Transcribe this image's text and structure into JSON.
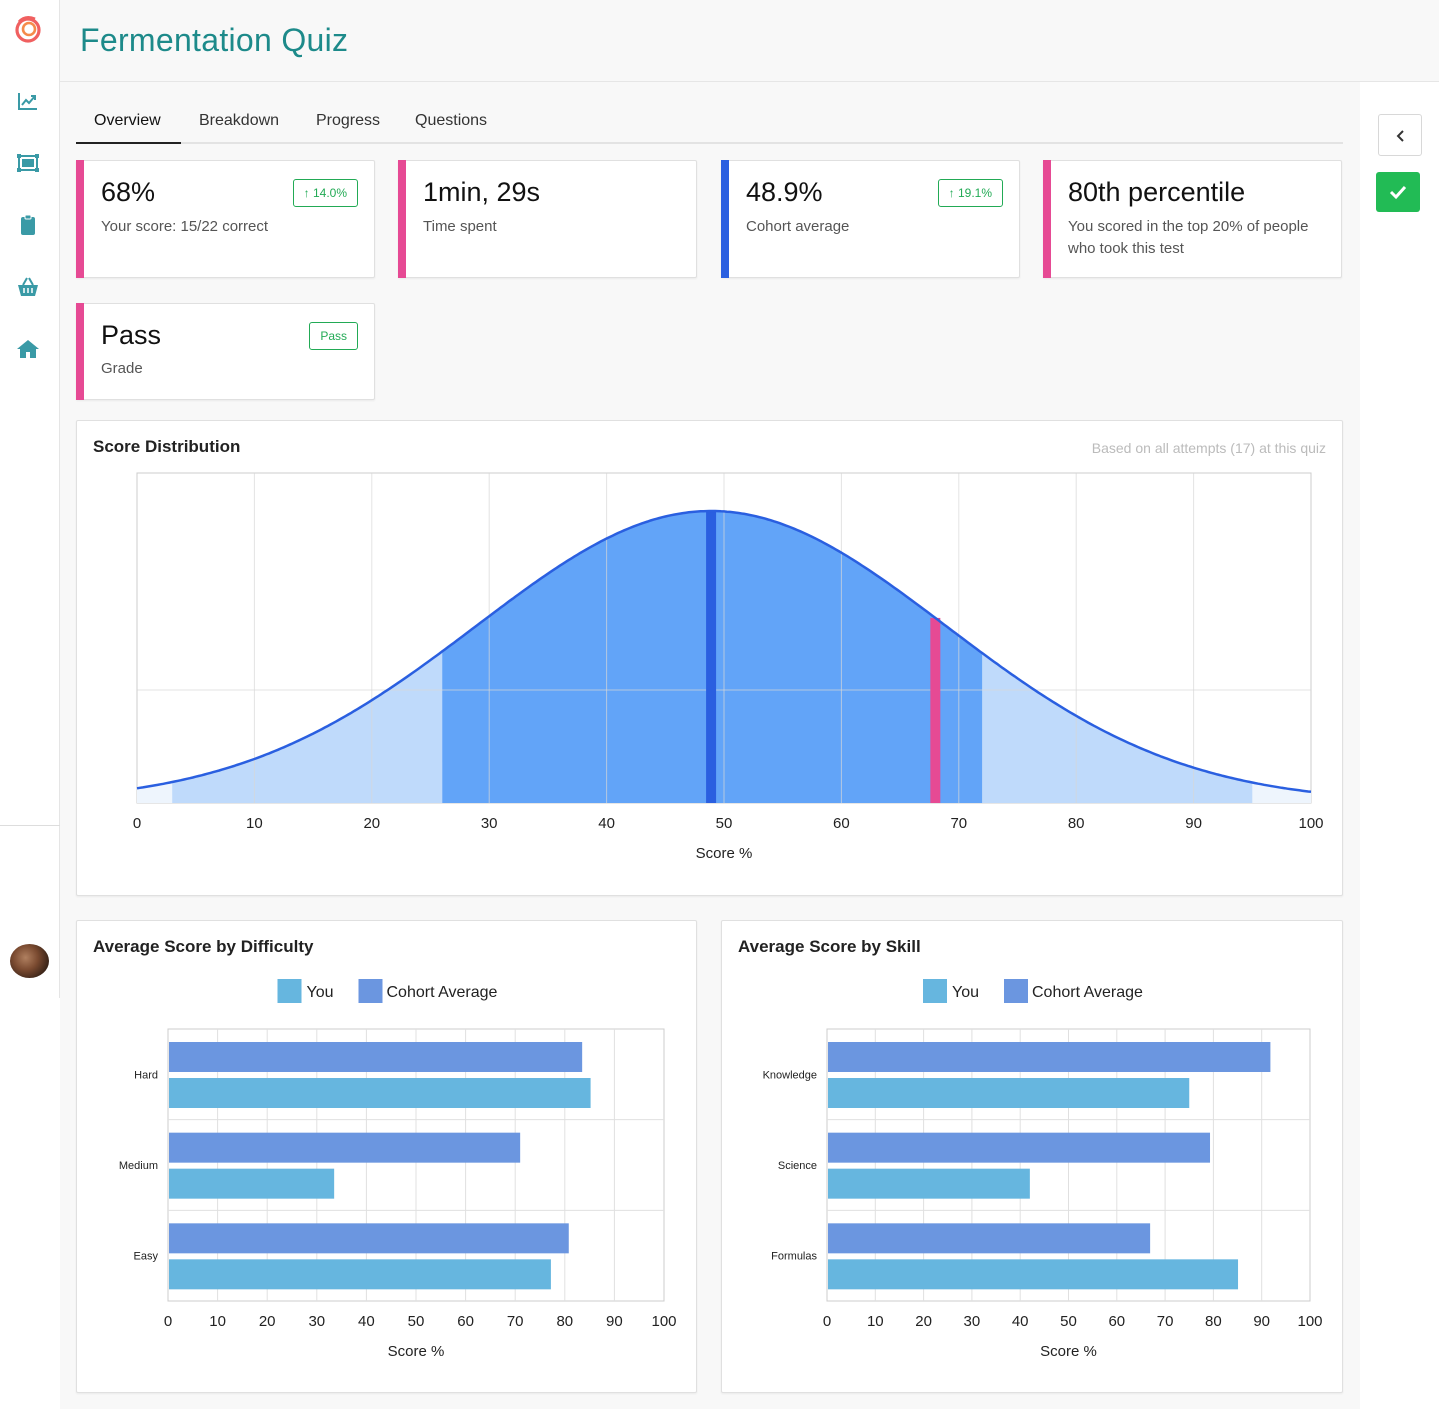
{
  "app": {
    "title": "Fermentation Quiz"
  },
  "sidebar": {
    "items": [
      {
        "icon": "trending-chart-icon"
      },
      {
        "icon": "gallery-icon"
      },
      {
        "icon": "clipboard-icon"
      },
      {
        "icon": "basket-icon"
      },
      {
        "icon": "home-icon"
      }
    ]
  },
  "tabs": [
    {
      "label": "Overview",
      "active": true
    },
    {
      "label": "Breakdown",
      "active": false
    },
    {
      "label": "Progress",
      "active": false
    },
    {
      "label": "Questions",
      "active": false
    }
  ],
  "stats": [
    {
      "value": "68%",
      "label": "Your score: 15/22 correct",
      "badge": "↑ 14.0%",
      "accent": "#e64a94"
    },
    {
      "value": "1min, 29s",
      "label": "Time spent",
      "badge": "",
      "accent": "#e64a94"
    },
    {
      "value": "48.9%",
      "label": "Cohort average",
      "badge": "↑ 19.1%",
      "accent": "#2a5fe0"
    },
    {
      "value": "80th percentile",
      "label": "You scored in the top 20% of people who took this test",
      "badge": "",
      "accent": "#e64a94"
    },
    {
      "value": "Pass",
      "label": "Grade",
      "badge": "Pass",
      "accent": "#e64a94"
    }
  ],
  "distribution": {
    "title": "Score Distribution",
    "note": "Based on all attempts (17) at this quiz",
    "chart_data": {
      "type": "area",
      "xlabel": "Score %",
      "xlim": [
        0,
        100
      ],
      "x_ticks": [
        0,
        10,
        20,
        30,
        40,
        50,
        60,
        70,
        80,
        90,
        100
      ],
      "curve": {
        "type": "normal",
        "mean": 48.9,
        "sd": 20
      },
      "markers": [
        {
          "name": "Cohort average",
          "x": 48.9,
          "color": "#2a5fe0"
        },
        {
          "name": "You",
          "x": 68,
          "color": "#e64a94"
        }
      ],
      "bands": [
        {
          "from": 3,
          "to": 26,
          "color": "#bfdafb"
        },
        {
          "from": 26,
          "to": 72,
          "color": "#62a4f8"
        },
        {
          "from": 72,
          "to": 95,
          "color": "#bfdafb"
        }
      ],
      "grid": true
    }
  },
  "difficulty": {
    "title": "Average Score by Difficulty",
    "chart_data": {
      "type": "bar",
      "orientation": "horizontal",
      "categories": [
        "Hard",
        "Medium",
        "Easy"
      ],
      "series": [
        {
          "name": "Cohort Average",
          "color": "#6b96e0",
          "values": [
            83.5,
            71,
            80.8
          ]
        },
        {
          "name": "You",
          "color": "#66b6df",
          "values": [
            85.2,
            33.5,
            77.2
          ]
        }
      ],
      "xlabel": "Score %",
      "xlim": [
        0,
        100
      ],
      "x_ticks": [
        0,
        10,
        20,
        30,
        40,
        50,
        60,
        70,
        80,
        90,
        100
      ],
      "legend": "top",
      "grid": true
    }
  },
  "skill": {
    "title": "Average Score by Skill",
    "chart_data": {
      "type": "bar",
      "orientation": "horizontal",
      "categories": [
        "Knowledge",
        "Science",
        "Formulas"
      ],
      "series": [
        {
          "name": "Cohort Average",
          "color": "#6b96e0",
          "values": [
            91.8,
            79.3,
            66.9
          ]
        },
        {
          "name": "You",
          "color": "#66b6df",
          "values": [
            75,
            42,
            85.1
          ]
        }
      ],
      "xlabel": "Score %",
      "xlim": [
        0,
        100
      ],
      "x_ticks": [
        0,
        10,
        20,
        30,
        40,
        50,
        60,
        70,
        80,
        90,
        100
      ],
      "legend": "top",
      "grid": true
    }
  },
  "legend": {
    "you": "You",
    "cohort": "Cohort Average"
  }
}
